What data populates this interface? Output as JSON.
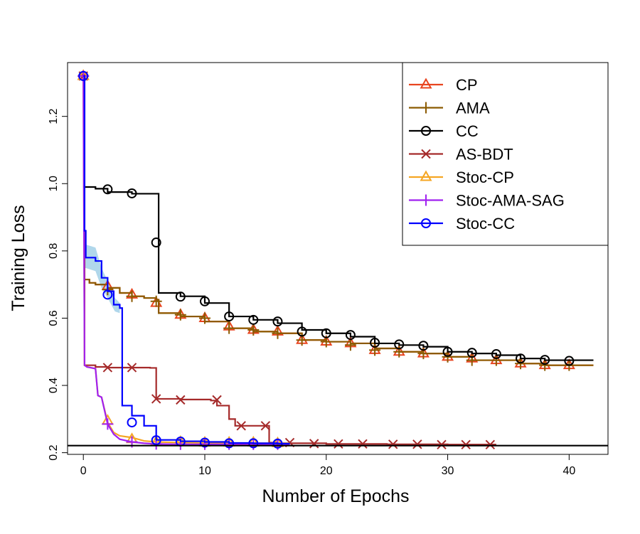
{
  "chart_data": {
    "type": "line",
    "title": "",
    "xlabel": "Number of Epochs",
    "ylabel": "Training Loss",
    "xlim": [
      -1.3,
      43.2
    ],
    "ylim": [
      0.195,
      1.36
    ],
    "xticks": [
      0,
      10,
      20,
      30,
      40
    ],
    "yticks": [
      0.2,
      0.4,
      0.6,
      0.8,
      1.0,
      1.2
    ],
    "ytick_labels": [
      "0.2",
      "0.4",
      "0.6",
      "0.8",
      "1.0",
      "1.2"
    ],
    "reference_line_y": 0.221,
    "grid": false,
    "legend_position": "top-right",
    "series": [
      {
        "name": "CP",
        "color": "#E8441F",
        "marker": "triangle",
        "line": "step",
        "x": [
          0,
          0.1,
          0.5,
          1,
          2,
          3,
          4,
          5,
          6,
          6.2,
          8,
          10,
          12,
          14,
          16,
          18,
          20,
          22,
          24,
          26,
          28,
          30,
          32,
          34,
          36,
          38,
          40,
          42
        ],
        "y": [
          1.32,
          0.715,
          0.705,
          0.7,
          0.69,
          0.675,
          0.665,
          0.66,
          0.655,
          0.615,
          0.605,
          0.59,
          0.57,
          0.56,
          0.555,
          0.535,
          0.53,
          0.525,
          0.51,
          0.5,
          0.495,
          0.485,
          0.475,
          0.475,
          0.465,
          0.46,
          0.46,
          0.46
        ],
        "marker_x": [
          0,
          2,
          4,
          6,
          8,
          10,
          12,
          14,
          16,
          18,
          20,
          22,
          24,
          26,
          28,
          30,
          32,
          34,
          36,
          38,
          40
        ],
        "marker_y": [
          1.32,
          0.695,
          0.67,
          0.645,
          0.61,
          0.6,
          0.575,
          0.565,
          0.56,
          0.535,
          0.53,
          0.525,
          0.505,
          0.5,
          0.495,
          0.485,
          0.48,
          0.475,
          0.465,
          0.46,
          0.46
        ]
      },
      {
        "name": "AMA",
        "color": "#8B5A00",
        "marker": "plus",
        "line": "step",
        "x": [
          0,
          0.1,
          0.5,
          1,
          2,
          3,
          4,
          5,
          6,
          6.2,
          8,
          10,
          12,
          14,
          16,
          18,
          20,
          22,
          24,
          26,
          28,
          30,
          32,
          34,
          36,
          38,
          40,
          42
        ],
        "y": [
          1.32,
          0.715,
          0.705,
          0.7,
          0.69,
          0.675,
          0.665,
          0.66,
          0.655,
          0.615,
          0.605,
          0.59,
          0.57,
          0.56,
          0.555,
          0.535,
          0.53,
          0.525,
          0.51,
          0.5,
          0.495,
          0.485,
          0.475,
          0.475,
          0.465,
          0.46,
          0.46,
          0.46
        ],
        "marker_x": [
          0,
          2,
          4,
          6,
          8,
          10,
          12,
          14,
          16,
          18,
          20,
          22,
          24,
          26,
          28,
          30,
          32,
          34,
          36,
          38,
          40
        ],
        "marker_y": [
          1.32,
          0.685,
          0.665,
          0.65,
          0.61,
          0.6,
          0.57,
          0.565,
          0.555,
          0.535,
          0.53,
          0.52,
          0.505,
          0.5,
          0.495,
          0.485,
          0.475,
          0.475,
          0.465,
          0.46,
          0.46
        ]
      },
      {
        "name": "CC",
        "color": "#000000",
        "marker": "circle",
        "line": "step",
        "x": [
          0,
          0.1,
          1,
          2,
          4,
          6,
          6.2,
          8,
          10,
          12,
          14,
          16,
          18,
          20,
          22,
          24,
          26,
          28,
          30,
          32,
          34,
          36,
          38,
          40,
          42
        ],
        "y": [
          1.32,
          0.99,
          0.985,
          0.975,
          0.97,
          0.97,
          0.675,
          0.665,
          0.645,
          0.605,
          0.595,
          0.585,
          0.565,
          0.555,
          0.545,
          0.525,
          0.52,
          0.515,
          0.5,
          0.495,
          0.49,
          0.48,
          0.475,
          0.475,
          0.475
        ],
        "marker_x": [
          0,
          2,
          4,
          6,
          8,
          10,
          12,
          14,
          16,
          18,
          20,
          22,
          24,
          26,
          28,
          30,
          32,
          34,
          36,
          38,
          40
        ],
        "marker_y": [
          1.32,
          0.983,
          0.971,
          0.825,
          0.664,
          0.65,
          0.605,
          0.595,
          0.59,
          0.56,
          0.555,
          0.55,
          0.527,
          0.522,
          0.518,
          0.5,
          0.497,
          0.493,
          0.48,
          0.476,
          0.473
        ]
      },
      {
        "name": "AS-BDT",
        "color": "#A52A2A",
        "marker": "x",
        "line": "step",
        "x": [
          0,
          0.1,
          1,
          2,
          4,
          5.5,
          6,
          8,
          10,
          10.5,
          11,
          12,
          12.5,
          13,
          15,
          15.3,
          16,
          20,
          25,
          30,
          34
        ],
        "y": [
          1.32,
          0.46,
          0.455,
          0.453,
          0.453,
          0.452,
          0.36,
          0.358,
          0.358,
          0.355,
          0.34,
          0.3,
          0.28,
          0.28,
          0.28,
          0.23,
          0.228,
          0.226,
          0.225,
          0.224,
          0.224
        ],
        "marker_x": [
          0,
          2,
          4,
          6,
          8,
          11,
          13,
          15,
          17,
          19,
          21,
          23,
          25.5,
          27.5,
          29.5,
          31.5,
          33.5
        ],
        "marker_y": [
          1.32,
          0.453,
          0.453,
          0.36,
          0.357,
          0.357,
          0.28,
          0.28,
          0.23,
          0.227,
          0.226,
          0.226,
          0.225,
          0.225,
          0.224,
          0.224,
          0.224
        ]
      },
      {
        "name": "Stoc-CP",
        "color": "#F5A623",
        "marker": "triangle",
        "line": "smooth",
        "x": [
          0,
          0.1,
          0.3,
          1,
          1.2,
          1.5,
          2,
          2.5,
          3,
          4,
          5,
          6,
          8,
          10,
          12,
          14,
          16,
          17
        ],
        "y": [
          1.32,
          0.46,
          0.455,
          0.45,
          0.37,
          0.365,
          0.29,
          0.26,
          0.25,
          0.245,
          0.235,
          0.232,
          0.23,
          0.229,
          0.229,
          0.228,
          0.228,
          0.228
        ],
        "marker_x": [
          0,
          2,
          4,
          6,
          8,
          10,
          12,
          14,
          16
        ],
        "marker_y": [
          1.32,
          0.295,
          0.24,
          0.232,
          0.232,
          0.23,
          0.23,
          0.23,
          0.228
        ]
      },
      {
        "name": "Stoc-AMA-SAG",
        "color": "#A020F0",
        "marker": "plus",
        "line": "smooth",
        "x": [
          0,
          0.1,
          0.3,
          1,
          1.2,
          1.5,
          2,
          2.5,
          3,
          4,
          5,
          6,
          8,
          10,
          12,
          14,
          16,
          17
        ],
        "y": [
          1.32,
          0.46,
          0.455,
          0.45,
          0.37,
          0.365,
          0.285,
          0.255,
          0.24,
          0.232,
          0.228,
          0.226,
          0.225,
          0.225,
          0.225,
          0.225,
          0.225,
          0.225
        ],
        "marker_x": [
          0,
          2,
          4,
          6,
          8,
          10,
          12,
          14,
          16
        ],
        "marker_y": [
          1.32,
          0.285,
          0.232,
          0.226,
          0.225,
          0.225,
          0.225,
          0.225,
          0.225
        ]
      },
      {
        "name": "Stoc-CC",
        "color": "#0000FF",
        "marker": "circle",
        "line": "step",
        "x": [
          0,
          0.1,
          0.2,
          1,
          1.5,
          2,
          2.5,
          3,
          3.2,
          4,
          5,
          6,
          8,
          10,
          12,
          14,
          16,
          17
        ],
        "y": [
          1.32,
          0.86,
          0.78,
          0.77,
          0.72,
          0.68,
          0.64,
          0.63,
          0.34,
          0.31,
          0.28,
          0.238,
          0.234,
          0.232,
          0.229,
          0.228,
          0.227,
          0.227
        ],
        "marker_x": [
          0,
          2,
          4,
          6,
          8,
          10,
          12,
          14,
          16
        ],
        "marker_y": [
          1.32,
          0.67,
          0.29,
          0.237,
          0.233,
          0.23,
          0.228,
          0.228,
          0.227
        ]
      }
    ]
  }
}
